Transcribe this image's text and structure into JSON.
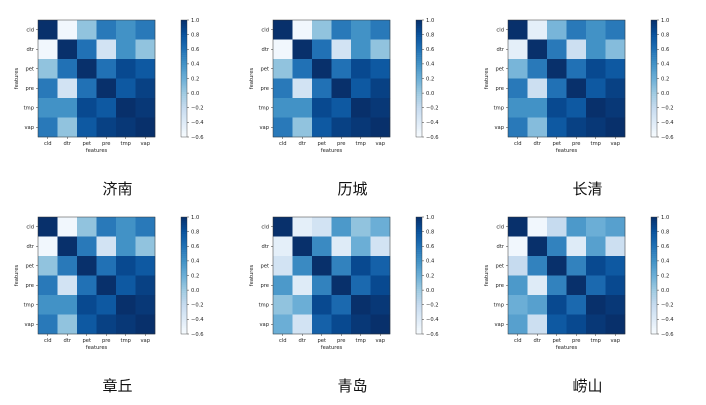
{
  "page": {
    "background": "#ffffff"
  },
  "colormap": {
    "name": "Blues",
    "stops": [
      "#f7fbff",
      "#deebf7",
      "#c6dbef",
      "#9ecae1",
      "#6baed6",
      "#4292c6",
      "#2171b5",
      "#08519c",
      "#08306b"
    ]
  },
  "chart_data": [
    {
      "type": "heatmap",
      "title": "济南",
      "xlabel": "features",
      "ylabel": "features",
      "labels": [
        "cld",
        "dtr",
        "pet",
        "pre",
        "tmp",
        "vap"
      ],
      "vmin": -0.6,
      "vmax": 1.0,
      "colorbar_ticks": [
        "1.0",
        "0.8",
        "0.6",
        "0.4",
        "0.2",
        "0.0",
        "−0.2",
        "−0.4",
        "−0.6"
      ],
      "matrix": [
        [
          1.0,
          -0.55,
          0.05,
          0.55,
          0.4,
          0.55
        ],
        [
          -0.55,
          1.0,
          0.6,
          -0.3,
          0.4,
          0.05
        ],
        [
          0.05,
          0.6,
          1.0,
          0.6,
          0.85,
          0.75
        ],
        [
          0.55,
          -0.3,
          0.6,
          1.0,
          0.75,
          0.9
        ],
        [
          0.4,
          0.4,
          0.85,
          0.75,
          1.0,
          0.95
        ],
        [
          0.55,
          0.05,
          0.75,
          0.9,
          0.95,
          1.0
        ]
      ]
    },
    {
      "type": "heatmap",
      "title": "历城",
      "xlabel": "features",
      "ylabel": "features",
      "labels": [
        "cld",
        "dtr",
        "pet",
        "pre",
        "tmp",
        "vap"
      ],
      "vmin": -0.6,
      "vmax": 1.0,
      "colorbar_ticks": [
        "1.0",
        "0.8",
        "0.6",
        "0.4",
        "0.2",
        "0.0",
        "−0.2",
        "−0.4",
        "−0.6"
      ],
      "matrix": [
        [
          1.0,
          -0.55,
          0.05,
          0.55,
          0.4,
          0.55
        ],
        [
          -0.55,
          1.0,
          0.6,
          -0.3,
          0.4,
          0.05
        ],
        [
          0.05,
          0.6,
          1.0,
          0.6,
          0.85,
          0.75
        ],
        [
          0.55,
          -0.3,
          0.6,
          1.0,
          0.75,
          0.9
        ],
        [
          0.4,
          0.4,
          0.85,
          0.75,
          1.0,
          0.95
        ],
        [
          0.55,
          0.05,
          0.75,
          0.9,
          0.95,
          1.0
        ]
      ]
    },
    {
      "type": "heatmap",
      "title": "长清",
      "xlabel": "features",
      "ylabel": "features",
      "labels": [
        "cld",
        "dtr",
        "pet",
        "pre",
        "tmp",
        "vap"
      ],
      "vmin": -0.6,
      "vmax": 1.0,
      "colorbar_ticks": [
        "1.0",
        "0.8",
        "0.6",
        "0.4",
        "0.2",
        "0.0",
        "−0.2",
        "−0.4",
        "−0.6"
      ],
      "matrix": [
        [
          1.0,
          -0.45,
          0.15,
          0.55,
          0.4,
          0.55
        ],
        [
          -0.45,
          1.0,
          0.55,
          -0.25,
          0.4,
          0.1
        ],
        [
          0.15,
          0.55,
          1.0,
          0.6,
          0.85,
          0.75
        ],
        [
          0.55,
          -0.25,
          0.6,
          1.0,
          0.75,
          0.9
        ],
        [
          0.4,
          0.4,
          0.85,
          0.75,
          1.0,
          0.95
        ],
        [
          0.55,
          0.1,
          0.75,
          0.9,
          0.95,
          1.0
        ]
      ]
    },
    {
      "type": "heatmap",
      "title": "章丘",
      "xlabel": "features",
      "ylabel": "features",
      "labels": [
        "cld",
        "dtr",
        "pet",
        "pre",
        "tmp",
        "vap"
      ],
      "vmin": -0.6,
      "vmax": 1.0,
      "colorbar_ticks": [
        "1.0",
        "0.8",
        "0.6",
        "0.4",
        "0.2",
        "0.0",
        "−0.2",
        "−0.4",
        "−0.6"
      ],
      "matrix": [
        [
          1.0,
          -0.55,
          0.05,
          0.55,
          0.4,
          0.55
        ],
        [
          -0.55,
          1.0,
          0.55,
          -0.3,
          0.4,
          0.05
        ],
        [
          0.05,
          0.55,
          1.0,
          0.6,
          0.85,
          0.75
        ],
        [
          0.55,
          -0.3,
          0.6,
          1.0,
          0.75,
          0.9
        ],
        [
          0.4,
          0.4,
          0.85,
          0.75,
          1.0,
          0.95
        ],
        [
          0.55,
          0.05,
          0.75,
          0.9,
          0.95,
          1.0
        ]
      ]
    },
    {
      "type": "heatmap",
      "title": "青岛",
      "xlabel": "features",
      "ylabel": "features",
      "labels": [
        "cld",
        "dtr",
        "pet",
        "pre",
        "tmp",
        "vap"
      ],
      "vmin": -0.6,
      "vmax": 1.0,
      "colorbar_ticks": [
        "1.0",
        "0.8",
        "0.6",
        "0.4",
        "0.2",
        "0.0",
        "−0.2",
        "−0.4",
        "−0.6"
      ],
      "matrix": [
        [
          1.0,
          -0.45,
          -0.3,
          0.35,
          0.05,
          0.2
        ],
        [
          -0.45,
          1.0,
          0.45,
          -0.4,
          0.2,
          -0.3
        ],
        [
          -0.3,
          0.45,
          1.0,
          0.5,
          0.85,
          0.7
        ],
        [
          0.35,
          -0.4,
          0.5,
          1.0,
          0.65,
          0.85
        ],
        [
          0.05,
          0.2,
          0.85,
          0.65,
          1.0,
          0.95
        ],
        [
          0.2,
          -0.3,
          0.7,
          0.85,
          0.95,
          1.0
        ]
      ]
    },
    {
      "type": "heatmap",
      "title": "崂山",
      "xlabel": "features",
      "ylabel": "features",
      "labels": [
        "cld",
        "dtr",
        "pet",
        "pre",
        "tmp",
        "vap"
      ],
      "vmin": -0.6,
      "vmax": 1.0,
      "colorbar_ticks": [
        "1.0",
        "0.8",
        "0.6",
        "0.4",
        "0.2",
        "0.0",
        "−0.2",
        "−0.4",
        "−0.6"
      ],
      "matrix": [
        [
          1.0,
          -0.55,
          -0.2,
          0.35,
          0.2,
          0.3
        ],
        [
          -0.55,
          1.0,
          0.5,
          -0.4,
          0.3,
          -0.25
        ],
        [
          -0.2,
          0.5,
          1.0,
          0.5,
          0.85,
          0.75
        ],
        [
          0.35,
          -0.4,
          0.5,
          1.0,
          0.65,
          0.85
        ],
        [
          0.2,
          0.3,
          0.85,
          0.65,
          1.0,
          0.95
        ],
        [
          0.3,
          -0.25,
          0.75,
          0.85,
          0.95,
          1.0
        ]
      ]
    }
  ]
}
